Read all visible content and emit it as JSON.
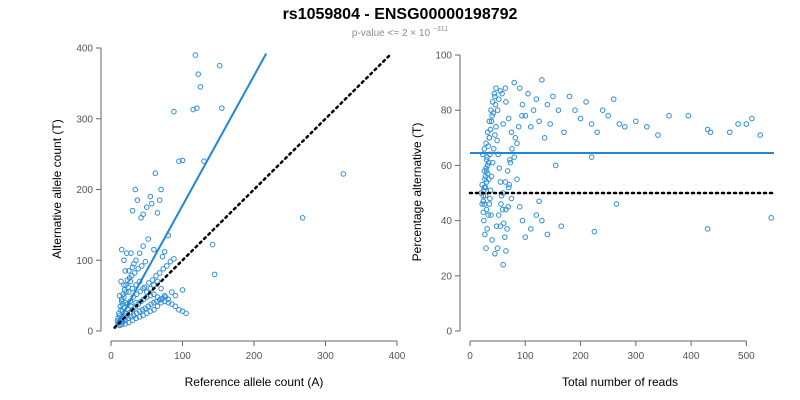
{
  "figure": {
    "title": "rs1059804 - ENSG00000198792",
    "subtitle_prefix": "p-value <= 2",
    "subtitle_times": "×",
    "subtitle_base": "10",
    "subtitle_exponent": "−311"
  },
  "colors": {
    "point": "#2f8ed6",
    "fit_line": "#1f86d9",
    "reference_line": "#000000",
    "axis": "#666666",
    "tick_text": "#555555"
  },
  "chart_data": [
    {
      "type": "scatter",
      "xlabel": "Reference allele count (A)",
      "ylabel": "Alternative allele count (T)",
      "xlim": [
        0,
        400
      ],
      "ylim": [
        0,
        400
      ],
      "xticks": [
        0,
        100,
        200,
        300,
        400
      ],
      "yticks": [
        0,
        100,
        200,
        300,
        400
      ],
      "grid": false,
      "legend": "none",
      "points": [
        [
          118,
          390
        ],
        [
          152,
          375
        ],
        [
          122,
          363
        ],
        [
          155,
          315
        ],
        [
          125,
          345
        ],
        [
          120,
          315
        ],
        [
          115,
          313
        ],
        [
          88,
          310
        ],
        [
          95,
          240
        ],
        [
          100,
          241
        ],
        [
          130,
          240
        ],
        [
          62,
          223
        ],
        [
          70,
          200
        ],
        [
          68,
          185
        ],
        [
          65,
          167
        ],
        [
          57,
          180
        ],
        [
          50,
          175
        ],
        [
          55,
          190
        ],
        [
          45,
          165
        ],
        [
          42,
          160
        ],
        [
          37,
          185
        ],
        [
          34,
          200
        ],
        [
          30,
          170
        ],
        [
          325,
          222
        ],
        [
          268,
          160
        ],
        [
          142,
          122
        ],
        [
          145,
          80
        ],
        [
          100,
          58
        ],
        [
          80,
          135
        ],
        [
          75,
          112
        ],
        [
          72,
          105
        ],
        [
          60,
          115
        ],
        [
          52,
          130
        ],
        [
          45,
          120
        ],
        [
          40,
          110
        ],
        [
          35,
          100
        ],
        [
          30,
          90
        ],
        [
          25,
          85
        ],
        [
          20,
          85
        ],
        [
          15,
          115
        ],
        [
          18,
          100
        ],
        [
          22,
          110
        ],
        [
          28,
          110
        ],
        [
          32,
          95
        ],
        [
          26,
          75
        ],
        [
          18,
          65
        ],
        [
          14,
          70
        ],
        [
          12,
          50
        ],
        [
          15,
          45
        ],
        [
          20,
          40
        ],
        [
          25,
          55
        ],
        [
          30,
          60
        ],
        [
          35,
          65
        ],
        [
          40,
          70
        ],
        [
          45,
          60
        ],
        [
          50,
          55
        ],
        [
          55,
          60
        ],
        [
          60,
          65
        ],
        [
          65,
          70
        ],
        [
          70,
          60
        ],
        [
          75,
          50
        ],
        [
          85,
          55
        ],
        [
          90,
          50
        ],
        [
          80,
          45
        ],
        [
          70,
          40
        ],
        [
          65,
          35
        ],
        [
          60,
          30
        ],
        [
          55,
          28
        ],
        [
          50,
          25
        ],
        [
          45,
          22
        ],
        [
          40,
          20
        ],
        [
          35,
          18
        ],
        [
          30,
          15
        ],
        [
          25,
          12
        ],
        [
          20,
          10
        ],
        [
          15,
          9
        ],
        [
          12,
          8
        ],
        [
          10,
          10
        ],
        [
          14,
          14
        ],
        [
          18,
          18
        ],
        [
          22,
          22
        ],
        [
          26,
          26
        ],
        [
          30,
          30
        ],
        [
          34,
          34
        ],
        [
          38,
          38
        ],
        [
          42,
          42
        ],
        [
          46,
          45
        ],
        [
          50,
          48
        ],
        [
          55,
          50
        ],
        [
          60,
          52
        ],
        [
          65,
          48
        ],
        [
          70,
          45
        ],
        [
          75,
          42
        ],
        [
          80,
          40
        ],
        [
          85,
          38
        ],
        [
          90,
          35
        ],
        [
          95,
          30
        ],
        [
          100,
          28
        ],
        [
          105,
          25
        ],
        [
          35,
          40
        ],
        [
          28,
          35
        ],
        [
          24,
          30
        ],
        [
          20,
          25
        ],
        [
          17,
          20
        ],
        [
          13,
          15
        ],
        [
          11,
          12
        ],
        [
          16,
          28
        ],
        [
          19,
          33
        ],
        [
          23,
          38
        ],
        [
          27,
          42
        ],
        [
          31,
          48
        ],
        [
          36,
          52
        ],
        [
          41,
          56
        ],
        [
          47,
          62
        ],
        [
          53,
          68
        ],
        [
          58,
          72
        ],
        [
          63,
          78
        ],
        [
          68,
          82
        ],
        [
          73,
          88
        ],
        [
          78,
          92
        ],
        [
          83,
          98
        ],
        [
          88,
          102
        ],
        [
          12,
          22
        ],
        [
          14,
          30
        ],
        [
          16,
          38
        ],
        [
          18,
          48
        ],
        [
          21,
          55
        ],
        [
          24,
          62
        ],
        [
          27,
          70
        ],
        [
          29,
          78
        ],
        [
          33,
          82
        ],
        [
          38,
          88
        ],
        [
          43,
          92
        ],
        [
          48,
          98
        ],
        [
          10,
          18
        ],
        [
          11,
          25
        ],
        [
          13,
          35
        ],
        [
          15,
          42
        ],
        [
          17,
          52
        ],
        [
          19,
          58
        ],
        [
          21,
          65
        ],
        [
          23,
          72
        ],
        [
          9,
          14
        ],
        [
          12,
          12
        ],
        [
          16,
          12
        ],
        [
          20,
          15
        ],
        [
          24,
          18
        ],
        [
          28,
          20
        ],
        [
          32,
          22
        ],
        [
          36,
          25
        ],
        [
          40,
          28
        ],
        [
          44,
          30
        ],
        [
          48,
          32
        ],
        [
          52,
          35
        ],
        [
          56,
          38
        ],
        [
          60,
          40
        ],
        [
          64,
          42
        ],
        [
          68,
          44
        ],
        [
          72,
          46
        ],
        [
          76,
          48
        ]
      ],
      "fit_line": [
        [
          5,
          3
        ],
        [
          217,
          392
        ]
      ],
      "reference_line": [
        [
          5,
          5
        ],
        [
          390,
          390
        ]
      ]
    },
    {
      "type": "scatter",
      "xlabel": "Total number of reads",
      "ylabel": "Percentage alternative (T)",
      "xlim": [
        0,
        550
      ],
      "ylim": [
        0,
        100
      ],
      "xticks": [
        0,
        100,
        200,
        300,
        400,
        500
      ],
      "yticks": [
        0,
        20,
        40,
        60,
        80,
        100
      ],
      "grid": false,
      "legend": "none",
      "points": [
        [
          30,
          62
        ],
        [
          35,
          70
        ],
        [
          40,
          78
        ],
        [
          45,
          85
        ],
        [
          50,
          80
        ],
        [
          55,
          87
        ],
        [
          60,
          75
        ],
        [
          65,
          83
        ],
        [
          70,
          77
        ],
        [
          75,
          72
        ],
        [
          80,
          90
        ],
        [
          85,
          68
        ],
        [
          90,
          88
        ],
        [
          95,
          82
        ],
        [
          100,
          78
        ],
        [
          105,
          86
        ],
        [
          110,
          74
        ],
        [
          115,
          80
        ],
        [
          120,
          84
        ],
        [
          125,
          76
        ],
        [
          130,
          91
        ],
        [
          135,
          70
        ],
        [
          140,
          82
        ],
        [
          145,
          75
        ],
        [
          150,
          85
        ],
        [
          160,
          80
        ],
        [
          170,
          72
        ],
        [
          180,
          85
        ],
        [
          190,
          80
        ],
        [
          200,
          77
        ],
        [
          210,
          83
        ],
        [
          220,
          75
        ],
        [
          230,
          72
        ],
        [
          240,
          80
        ],
        [
          250,
          78
        ],
        [
          260,
          84
        ],
        [
          270,
          75
        ],
        [
          280,
          74
        ],
        [
          300,
          76
        ],
        [
          320,
          74
        ],
        [
          340,
          71
        ],
        [
          360,
          78
        ],
        [
          395,
          78
        ],
        [
          430,
          73
        ],
        [
          435,
          72
        ],
        [
          470,
          72
        ],
        [
          485,
          75
        ],
        [
          500,
          75
        ],
        [
          510,
          77
        ],
        [
          525,
          71
        ],
        [
          545,
          41
        ],
        [
          430,
          37
        ],
        [
          265,
          46
        ],
        [
          225,
          36
        ],
        [
          220,
          63
        ],
        [
          165,
          38
        ],
        [
          155,
          60
        ],
        [
          140,
          35
        ],
        [
          130,
          40
        ],
        [
          125,
          47
        ],
        [
          120,
          42
        ],
        [
          110,
          37
        ],
        [
          100,
          34
        ],
        [
          95,
          40
        ],
        [
          90,
          45
        ],
        [
          85,
          55
        ],
        [
          80,
          63
        ],
        [
          75,
          48
        ],
        [
          70,
          52
        ],
        [
          65,
          44
        ],
        [
          60,
          24
        ],
        [
          55,
          38
        ],
        [
          50,
          30
        ],
        [
          45,
          28
        ],
        [
          40,
          33
        ],
        [
          38,
          42
        ],
        [
          36,
          48
        ],
        [
          34,
          55
        ],
        [
          32,
          60
        ],
        [
          30,
          44
        ],
        [
          28,
          52
        ],
        [
          26,
          58
        ],
        [
          24,
          47
        ],
        [
          22,
          53
        ],
        [
          20,
          50
        ],
        [
          25,
          40
        ],
        [
          27,
          35
        ],
        [
          29,
          30
        ],
        [
          31,
          37
        ],
        [
          33,
          42
        ],
        [
          35,
          46
        ],
        [
          37,
          51
        ],
        [
          39,
          56
        ],
        [
          41,
          61
        ],
        [
          43,
          66
        ],
        [
          45,
          71
        ],
        [
          47,
          74
        ],
        [
          49,
          69
        ],
        [
          51,
          64
        ],
        [
          53,
          59
        ],
        [
          55,
          54
        ],
        [
          57,
          49
        ],
        [
          59,
          44
        ],
        [
          61,
          39
        ],
        [
          63,
          34
        ],
        [
          65,
          29
        ],
        [
          67,
          37
        ],
        [
          69,
          45
        ],
        [
          71,
          53
        ],
        [
          73,
          61
        ],
        [
          23,
          64
        ],
        [
          26,
          66
        ],
        [
          29,
          68
        ],
        [
          32,
          72
        ],
        [
          35,
          76
        ],
        [
          38,
          80
        ],
        [
          41,
          83
        ],
        [
          44,
          86
        ],
        [
          47,
          88
        ],
        [
          24,
          43
        ],
        [
          26,
          46
        ],
        [
          28,
          49
        ],
        [
          30,
          54
        ],
        [
          32,
          57
        ],
        [
          34,
          61
        ],
        [
          36,
          64
        ],
        [
          25,
          51
        ],
        [
          27,
          55
        ],
        [
          29,
          59
        ],
        [
          31,
          63
        ],
        [
          33,
          67
        ],
        [
          35,
          70
        ],
        [
          37,
          73
        ],
        [
          39,
          76
        ],
        [
          42,
          79
        ],
        [
          46,
          82
        ],
        [
          52,
          84
        ],
        [
          58,
          86
        ],
        [
          64,
          88
        ],
        [
          48,
          38
        ],
        [
          52,
          42
        ],
        [
          56,
          46
        ],
        [
          60,
          50
        ],
        [
          64,
          54
        ],
        [
          68,
          58
        ],
        [
          72,
          62
        ],
        [
          76,
          66
        ],
        [
          82,
          70
        ],
        [
          88,
          74
        ],
        [
          94,
          78
        ],
        [
          22,
          46
        ],
        [
          24,
          49
        ],
        [
          26,
          52
        ],
        [
          28,
          56
        ],
        [
          30,
          58
        ]
      ],
      "fit_line": [
        [
          0,
          64.5
        ],
        [
          550,
          64.5
        ]
      ],
      "reference_line": [
        [
          0,
          50
        ],
        [
          550,
          50
        ]
      ]
    }
  ]
}
